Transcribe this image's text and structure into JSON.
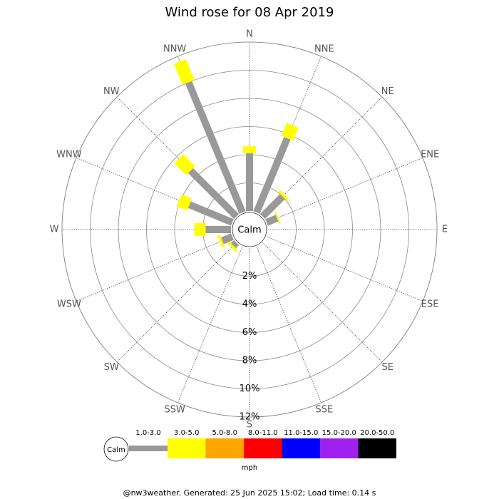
{
  "chart_data": {
    "type": "windrose",
    "title": "Wind rose for 08 Apr 2019",
    "directions": [
      "N",
      "NNE",
      "NE",
      "ENE",
      "E",
      "ESE",
      "SE",
      "SSE",
      "S",
      "SSW",
      "SW",
      "WSW",
      "W",
      "WNW",
      "NW",
      "NNW"
    ],
    "calm_label": "Calm",
    "series": [
      {
        "name": "1.0-3.0",
        "color": "#999999",
        "values": [
          4.1,
          5.7,
          2.0,
          0.8,
          0,
          0,
          0,
          0,
          0,
          0,
          0.3,
          0.77,
          1.8,
          3.3,
          4.6,
          10.0
        ]
      },
      {
        "name": "3.0-5.0",
        "color": "#ffff00",
        "values": [
          0.5,
          1.0,
          0.2,
          0.1,
          0,
          0,
          0,
          0,
          0,
          0,
          0.2,
          0.2,
          0.8,
          0.8,
          1.2,
          1.6
        ]
      },
      {
        "name": "5.0-8.0",
        "color": "#ffa500",
        "values": [
          0,
          0,
          0,
          0,
          0,
          0,
          0,
          0,
          0,
          0,
          0,
          0,
          0,
          0,
          0,
          0
        ]
      },
      {
        "name": "8.0-11.0",
        "color": "#ff0000",
        "values": [
          0,
          0,
          0,
          0,
          0,
          0,
          0,
          0,
          0,
          0,
          0,
          0,
          0,
          0,
          0,
          0
        ]
      },
      {
        "name": "11.0-15.0",
        "color": "#0000ff",
        "values": [
          0,
          0,
          0,
          0,
          0,
          0,
          0,
          0,
          0,
          0,
          0,
          0,
          0,
          0,
          0,
          0
        ]
      },
      {
        "name": "15.0-20.0",
        "color": "#a020f0",
        "values": [
          0,
          0,
          0,
          0,
          0,
          0,
          0,
          0,
          0,
          0,
          0,
          0,
          0,
          0,
          0,
          0
        ]
      },
      {
        "name": "20.0-50.0",
        "color": "#000000",
        "values": [
          0,
          0,
          0,
          0,
          0,
          0,
          0,
          0,
          0,
          0,
          0,
          0,
          0,
          0,
          0,
          0
        ]
      }
    ],
    "rlim": [
      0,
      12
    ],
    "rticks": [
      {
        "value": 2,
        "label": "2%"
      },
      {
        "value": 4,
        "label": "4%"
      },
      {
        "value": 6,
        "label": "6%"
      },
      {
        "value": 8,
        "label": "8%"
      },
      {
        "value": 10,
        "label": "10%"
      },
      {
        "value": 12,
        "label": "12%"
      }
    ],
    "legend_unit": "mph",
    "footer": "@nw3weather. Generated: 25 Jun 2025 15:02; Load time: 0.14 s"
  }
}
